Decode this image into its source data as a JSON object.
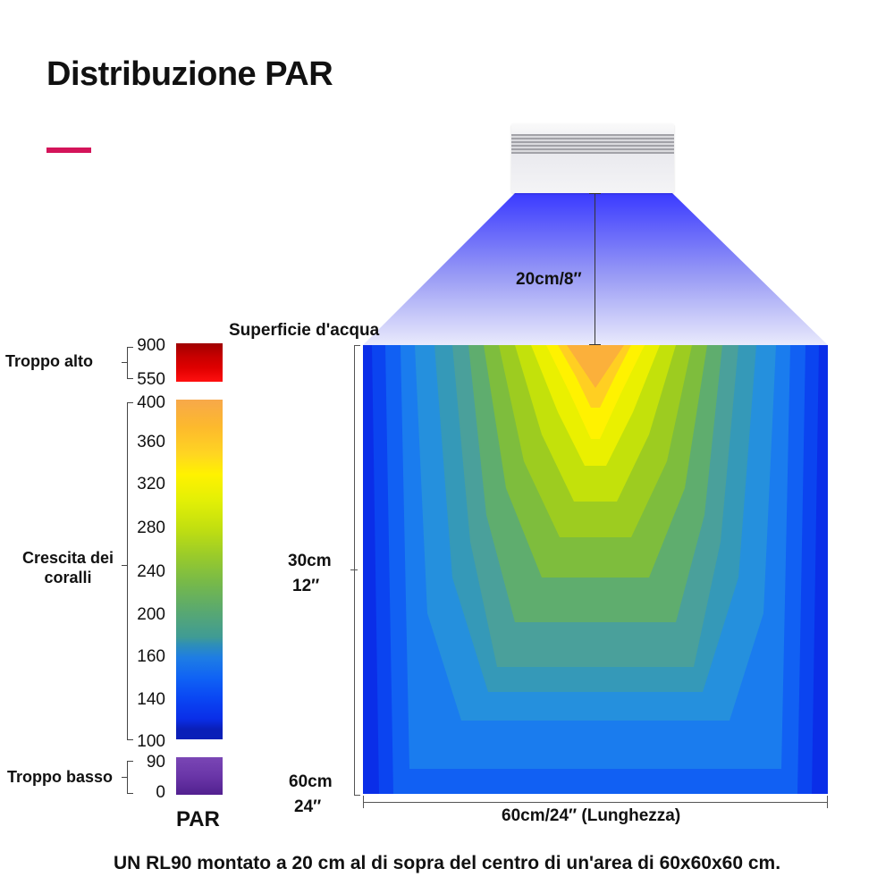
{
  "title": "Distribuzione PAR",
  "colors": {
    "accent": "#d4145a"
  },
  "lamp": {
    "icon": "led-fixture-icon",
    "distance_label": "20cm/8″"
  },
  "surface_label": "Superficie d'acqua",
  "depth_axis": {
    "mid_label_line1": "30cm",
    "mid_label_line2": "12″",
    "bottom_label_line1": "60cm",
    "bottom_label_line2": "24″"
  },
  "length_label": "60cm/24″  (Lunghezza)",
  "legend": {
    "title": "PAR",
    "groups": [
      {
        "name": "Troppo alto",
        "values": [
          "900",
          "550"
        ]
      },
      {
        "name_line1": "Crescita dei",
        "name_line2": "coralli",
        "values": [
          "400",
          "360",
          "320",
          "280",
          "240",
          "200",
          "160",
          "140",
          "100"
        ]
      },
      {
        "name": "Troppo basso",
        "values": [
          "90",
          "0"
        ]
      }
    ]
  },
  "caption": "UN RL90 montato a 20 cm al di sopra del centro di un'area di 60x60x60 cm."
}
